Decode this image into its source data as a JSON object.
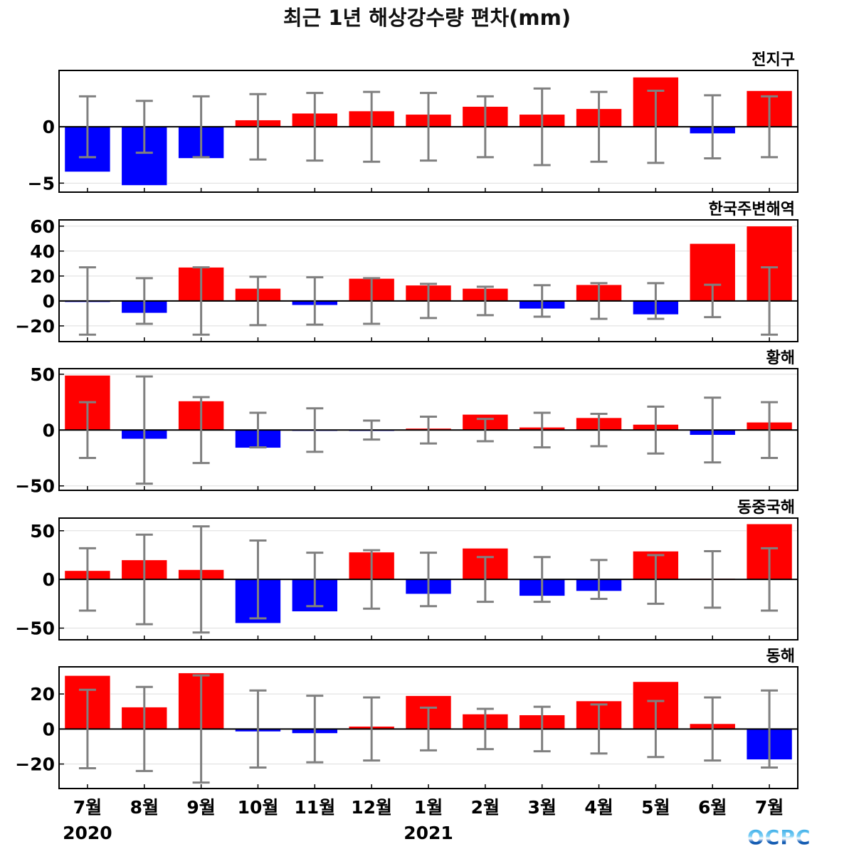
{
  "chart_data": {
    "type": "bar",
    "title": "최근 1년 해상강수량 편차(mm)",
    "categories": [
      "7월",
      "8월",
      "9월",
      "10월",
      "11월",
      "12월",
      "1월",
      "2월",
      "3월",
      "4월",
      "5월",
      "6월",
      "7월"
    ],
    "year_labels": [
      {
        "label": "2020",
        "category_index": 0
      },
      {
        "label": "2021",
        "category_index": 6
      }
    ],
    "colors": {
      "positive": "#ff0000",
      "negative": "#0000ff",
      "error_bar": "#808080",
      "grid": "#dddddd"
    },
    "error_bars": "symmetric about zero",
    "panels": [
      {
        "name": "전지구",
        "ylim": [
          -5.8,
          5.0
        ],
        "yticks": [
          -5,
          0
        ],
        "values": [
          -4.0,
          -5.2,
          -2.8,
          0.6,
          1.2,
          1.4,
          1.1,
          1.8,
          1.1,
          1.6,
          4.4,
          -0.6,
          3.2
        ],
        "errors": [
          2.7,
          2.3,
          2.7,
          2.9,
          3.0,
          3.1,
          3.0,
          2.7,
          3.4,
          3.1,
          3.2,
          2.8,
          2.7
        ]
      },
      {
        "name": "한국주변해역",
        "ylim": [
          -32.6,
          65
        ],
        "yticks": [
          -20,
          0,
          20,
          40,
          60
        ],
        "values": [
          -1,
          -9.7,
          27,
          10,
          -3.4,
          18,
          12.6,
          10,
          -6.3,
          13,
          -10.9,
          46,
          60
        ],
        "errors": [
          27,
          18.3,
          27,
          19.4,
          19,
          18.3,
          13.7,
          11.4,
          12.6,
          14.3,
          14.3,
          13,
          27
        ]
      },
      {
        "name": "황해",
        "ylim": [
          -54,
          55
        ],
        "yticks": [
          -50,
          0,
          50
        ],
        "values": [
          49,
          -8,
          26,
          -16,
          -0.5,
          -1,
          1.5,
          14,
          2.5,
          11,
          5,
          -4.5,
          7
        ],
        "errors": [
          25,
          48,
          29.5,
          15.5,
          19.5,
          8.5,
          12,
          10,
          15.5,
          14.5,
          21,
          29,
          25
        ]
      },
      {
        "name": "동중국해",
        "ylim": [
          -62,
          63
        ],
        "yticks": [
          -50,
          0,
          50
        ],
        "values": [
          9,
          20,
          10,
          -45,
          -33,
          28,
          -15,
          32,
          -17,
          -12,
          29,
          1,
          57
        ],
        "errors": [
          32,
          46,
          54.5,
          40,
          27.5,
          30,
          27.5,
          23,
          23,
          20,
          25,
          29,
          32
        ]
      },
      {
        "name": "동해",
        "ylim": [
          -34,
          35.5
        ],
        "yticks": [
          -20,
          0,
          20
        ],
        "values": [
          30.5,
          12.5,
          32,
          -1.5,
          -2.5,
          1.5,
          19,
          8.5,
          8,
          16,
          27,
          3,
          -17.5
        ],
        "errors": [
          22.4,
          24,
          30.6,
          22,
          19,
          18,
          12.2,
          11.5,
          12.7,
          14,
          16,
          18,
          22
        ]
      }
    ]
  },
  "logo": {
    "text": "OCPC"
  }
}
